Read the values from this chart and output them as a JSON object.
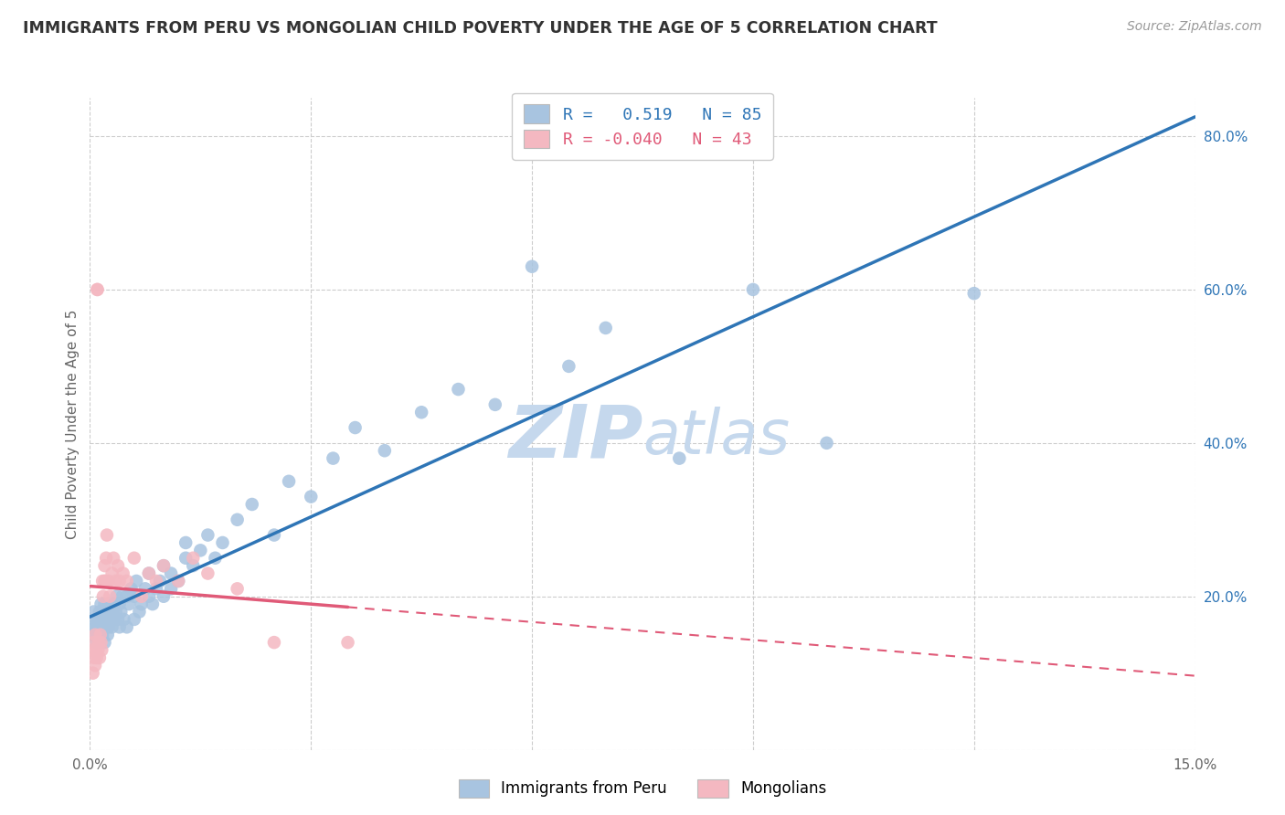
{
  "title": "IMMIGRANTS FROM PERU VS MONGOLIAN CHILD POVERTY UNDER THE AGE OF 5 CORRELATION CHART",
  "source": "Source: ZipAtlas.com",
  "ylabel": "Child Poverty Under the Age of 5",
  "xlim": [
    0.0,
    0.15
  ],
  "ylim": [
    0.0,
    0.85
  ],
  "yticks_right": [
    0.0,
    0.2,
    0.4,
    0.6,
    0.8
  ],
  "ytick_labels_right": [
    "",
    "20.0%",
    "40.0%",
    "60.0%",
    "80.0%"
  ],
  "blue_color": "#a8c4e0",
  "pink_color": "#f4b8c1",
  "blue_line_color": "#2e75b6",
  "pink_line_color": "#e05a78",
  "watermark_color": "#c5d8ed",
  "R_blue": 0.519,
  "N_blue": 85,
  "R_pink": -0.04,
  "N_pink": 43,
  "legend_label_blue": "Immigrants from Peru",
  "legend_label_pink": "Mongolians",
  "blue_scatter_x": [
    0.0003,
    0.0005,
    0.0005,
    0.0007,
    0.0008,
    0.0009,
    0.001,
    0.001,
    0.0012,
    0.0013,
    0.0013,
    0.0015,
    0.0015,
    0.0016,
    0.0017,
    0.0018,
    0.0019,
    0.002,
    0.002,
    0.002,
    0.0021,
    0.0022,
    0.0023,
    0.0024,
    0.0025,
    0.0026,
    0.0027,
    0.0028,
    0.003,
    0.003,
    0.0032,
    0.0033,
    0.0035,
    0.0036,
    0.0038,
    0.004,
    0.004,
    0.0042,
    0.0044,
    0.0046,
    0.005,
    0.005,
    0.0053,
    0.0056,
    0.006,
    0.006,
    0.0063,
    0.0067,
    0.007,
    0.0075,
    0.008,
    0.008,
    0.0085,
    0.009,
    0.0095,
    0.01,
    0.01,
    0.011,
    0.011,
    0.012,
    0.013,
    0.013,
    0.014,
    0.015,
    0.016,
    0.017,
    0.018,
    0.02,
    0.022,
    0.025,
    0.027,
    0.03,
    0.033,
    0.036,
    0.04,
    0.045,
    0.05,
    0.055,
    0.06,
    0.065,
    0.07,
    0.08,
    0.09,
    0.1,
    0.12
  ],
  "blue_scatter_y": [
    0.16,
    0.15,
    0.18,
    0.16,
    0.17,
    0.14,
    0.15,
    0.17,
    0.16,
    0.15,
    0.18,
    0.16,
    0.19,
    0.17,
    0.15,
    0.18,
    0.16,
    0.14,
    0.17,
    0.19,
    0.16,
    0.18,
    0.17,
    0.15,
    0.16,
    0.18,
    0.19,
    0.17,
    0.16,
    0.18,
    0.17,
    0.19,
    0.18,
    0.2,
    0.17,
    0.16,
    0.19,
    0.18,
    0.2,
    0.17,
    0.16,
    0.2,
    0.19,
    0.21,
    0.17,
    0.2,
    0.22,
    0.18,
    0.19,
    0.21,
    0.2,
    0.23,
    0.19,
    0.21,
    0.22,
    0.2,
    0.24,
    0.21,
    0.23,
    0.22,
    0.25,
    0.27,
    0.24,
    0.26,
    0.28,
    0.25,
    0.27,
    0.3,
    0.32,
    0.28,
    0.35,
    0.33,
    0.38,
    0.42,
    0.39,
    0.44,
    0.47,
    0.45,
    0.63,
    0.5,
    0.55,
    0.38,
    0.6,
    0.4,
    0.595
  ],
  "pink_scatter_x": [
    0.0003,
    0.0004,
    0.0005,
    0.0006,
    0.0007,
    0.0007,
    0.0008,
    0.0009,
    0.001,
    0.001,
    0.0011,
    0.0012,
    0.0013,
    0.0014,
    0.0015,
    0.0016,
    0.0017,
    0.0018,
    0.002,
    0.002,
    0.0021,
    0.0022,
    0.0023,
    0.0025,
    0.0027,
    0.003,
    0.0032,
    0.0035,
    0.0038,
    0.004,
    0.0045,
    0.005,
    0.006,
    0.007,
    0.008,
    0.009,
    0.01,
    0.012,
    0.014,
    0.016,
    0.02,
    0.025,
    0.035
  ],
  "pink_scatter_y": [
    0.13,
    0.1,
    0.14,
    0.12,
    0.15,
    0.11,
    0.13,
    0.12,
    0.6,
    0.6,
    0.13,
    0.14,
    0.12,
    0.15,
    0.14,
    0.13,
    0.22,
    0.2,
    0.22,
    0.24,
    0.22,
    0.25,
    0.28,
    0.22,
    0.2,
    0.23,
    0.25,
    0.22,
    0.24,
    0.22,
    0.23,
    0.22,
    0.25,
    0.2,
    0.23,
    0.22,
    0.24,
    0.22,
    0.25,
    0.23,
    0.21,
    0.14,
    0.14
  ]
}
